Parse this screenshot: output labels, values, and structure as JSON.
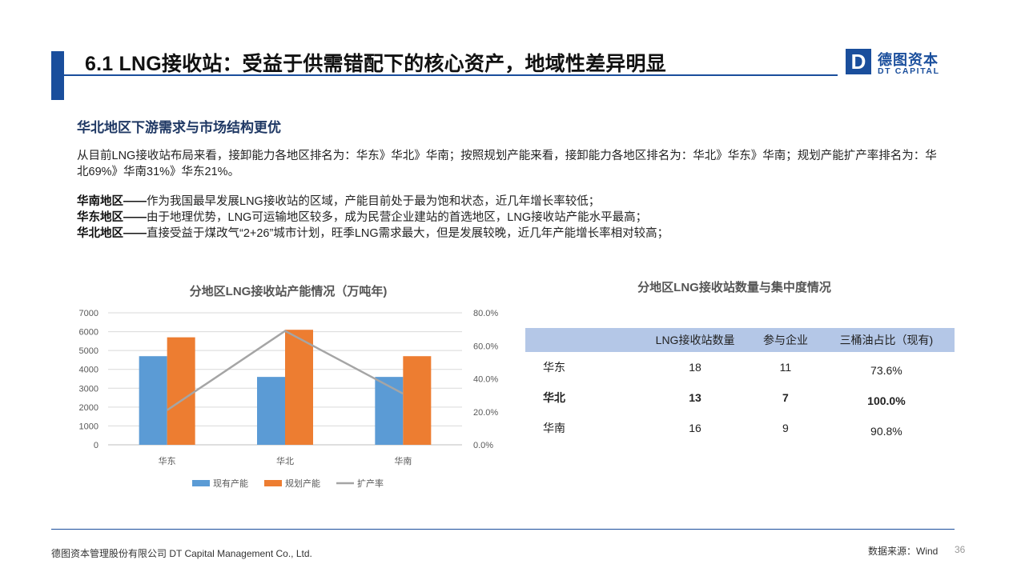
{
  "header": {
    "title": "6.1 LNG接收站：受益于供需错配下的核心资产，地域性差异明显",
    "logo_mark": "D",
    "logo_cn": "德图资本",
    "logo_en": "DT CAPITAL",
    "brand_color": "#1a4e9c"
  },
  "section": {
    "subtitle": "华北地区下游需求与市场结构更优",
    "paragraph": "从目前LNG接收站布局来看，接卸能力各地区排名为：华东》华北》华南；按照规划产能来看，接卸能力各地区排名为：华北》华东》华南；规划产能扩产率排名为：华北69%》华南31%》华东21%。",
    "regions": [
      {
        "lead": "华南地区——",
        "text": "作为我国最早发展LNG接收站的区域，产能目前处于最为饱和状态，近几年增长率较低；"
      },
      {
        "lead": "华东地区——",
        "text": "由于地理优势，LNG可运输地区较多，成为民营企业建站的首选地区，LNG接收站产能水平最高；"
      },
      {
        "lead": "华北地区——",
        "text": "直接受益于煤改气“2+26”城市计划，旺季LNG需求最大，但是发展较晚，近几年产能增长率相对较高；"
      }
    ]
  },
  "chart_data": {
    "type": "bar",
    "title": "分地区LNG接收站产能情况（万吨年)",
    "categories": [
      "华东",
      "华北",
      "华南"
    ],
    "series": [
      {
        "name": "现有产能",
        "kind": "bar",
        "axis": "left",
        "color": "#5b9bd5",
        "values": [
          4700,
          3600,
          3600
        ]
      },
      {
        "name": "规划产能",
        "kind": "bar",
        "axis": "left",
        "color": "#ed7d31",
        "values": [
          5700,
          6100,
          4700
        ]
      },
      {
        "name": "扩产率",
        "kind": "line",
        "axis": "right",
        "color": "#a5a5a5",
        "values": [
          21.0,
          69.0,
          31.0
        ]
      }
    ],
    "y_left": {
      "min": 0,
      "max": 7000,
      "ticks": [
        "0",
        "1000",
        "2000",
        "3000",
        "4000",
        "5000",
        "6000",
        "7000"
      ]
    },
    "y_right": {
      "min": 0,
      "max": 80,
      "ticks": [
        "0.0%",
        "20.0%",
        "40.0%",
        "60.0%",
        "80.0%"
      ]
    },
    "grid": true,
    "legend_position": "bottom"
  },
  "table": {
    "title": "分地区LNG接收站数量与集中度情况",
    "header_color": "#b4c7e7",
    "columns": [
      "",
      "LNG接收站数量",
      "参与企业",
      "三桶油占比（现有)"
    ],
    "rows": [
      {
        "region": "华东",
        "stations": "18",
        "companies": "11",
        "share": "73.6%",
        "bold": false
      },
      {
        "region": "华北",
        "stations": "13",
        "companies": "7",
        "share": "100.0%",
        "bold": true
      },
      {
        "region": "华南",
        "stations": "16",
        "companies": "9",
        "share": "90.8%",
        "bold": false
      }
    ]
  },
  "footer": {
    "company": "德图资本管理股份有限公司  DT Capital Management  Co., Ltd.",
    "source": "数据来源：Wind",
    "page": "36"
  }
}
